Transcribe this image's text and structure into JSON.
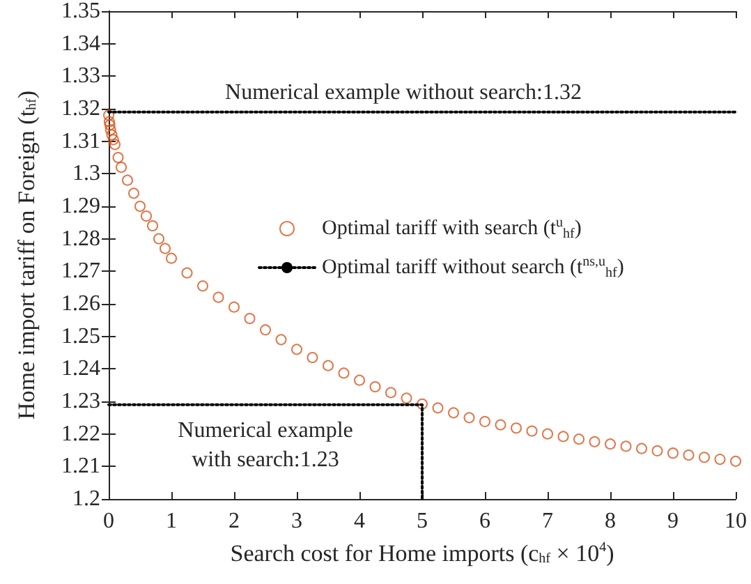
{
  "chart_data": {
    "type": "scatter",
    "xlabel": "Search cost for Home imports (c$_{hf}$ × 10$^{4}$)",
    "ylabel": "Home import tariff on Foreign (t$_{hf}$)",
    "xlim": [
      0,
      10
    ],
    "xticks": [
      0,
      1,
      2,
      3,
      4,
      5,
      6,
      7,
      8,
      9,
      10
    ],
    "ylim": [
      1.2,
      1.35
    ],
    "yticks": [
      1.2,
      1.21,
      1.22,
      1.23,
      1.24,
      1.25,
      1.26,
      1.27,
      1.28,
      1.29,
      1.3,
      1.31,
      1.32,
      1.33,
      1.34,
      1.35
    ],
    "grid": false,
    "legend": "right",
    "marker": "circle",
    "series": [
      {
        "name": "Optimal tariff with search (t$^{u}$$_{hf}$)",
        "color": "#d95319",
        "x": [
          0,
          0.01,
          0.02,
          0.03,
          0.05,
          0.075,
          0.1,
          0.15,
          0.2,
          0.3,
          0.4,
          0.5,
          0.6,
          0.7,
          0.8,
          0.9,
          1.0,
          1.25,
          1.5,
          1.75,
          2.0,
          2.25,
          2.5,
          2.75,
          3.0,
          3.25,
          3.5,
          3.75,
          4.0,
          4.25,
          4.5,
          4.75,
          5.0,
          5.25,
          5.5,
          5.75,
          6.0,
          6.25,
          6.5,
          6.75,
          7.0,
          7.25,
          7.5,
          7.75,
          8.0,
          8.25,
          8.5,
          8.75,
          9.0,
          9.25,
          9.5,
          9.75,
          10
        ],
        "values": [
          1.318,
          1.316,
          1.315,
          1.3135,
          1.312,
          1.3105,
          1.309,
          1.305,
          1.302,
          1.298,
          1.294,
          1.29,
          1.287,
          1.284,
          1.28,
          1.277,
          1.274,
          1.2695,
          1.2655,
          1.262,
          1.259,
          1.2555,
          1.252,
          1.249,
          1.246,
          1.2435,
          1.241,
          1.2387,
          1.2365,
          1.2345,
          1.2327,
          1.231,
          1.2292,
          1.228,
          1.2265,
          1.225,
          1.2238,
          1.2228,
          1.2218,
          1.2209,
          1.22,
          1.2192,
          1.2184,
          1.2176,
          1.2169,
          1.2162,
          1.2155,
          1.2148,
          1.2141,
          1.2135,
          1.2128,
          1.2122,
          1.2116
        ]
      },
      {
        "name": "Optimal tariff without search (t$^{ns,u}$$_{hf}$)",
        "type": "line",
        "color": "#000000",
        "line_style": "dotted",
        "marker": "none",
        "x": [
          0,
          10
        ],
        "values": [
          1.319,
          1.319
        ]
      },
      {
        "type": "line",
        "color": "#000000",
        "line_style": "dotted",
        "marker": "none",
        "x": [
          0,
          5,
          5
        ],
        "values": [
          1.229,
          1.229,
          1.2
        ]
      }
    ],
    "annotations": [
      "Numerical example without search:1.32",
      "Numerical example\nwith search:1.23"
    ]
  }
}
